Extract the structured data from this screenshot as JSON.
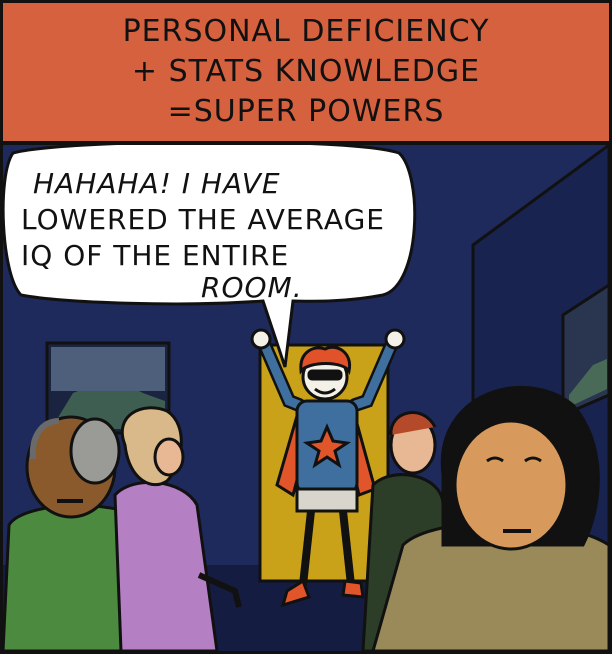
{
  "caption": {
    "line1": "PERSONAL DEFICIENCY",
    "line2": "+ STATS KNOWLEDGE",
    "line3": "=SUPER POWERS"
  },
  "speech": {
    "line1": "HAHAHA!  I HAVE",
    "line2": "LOWERED THE AVERAGE",
    "line3": "IQ OF THE ENTIRE",
    "line4": "ROOM."
  },
  "colors": {
    "caption_bg": "#d6613e",
    "wall": "#1f2a5c",
    "doorway": "#c9a21a",
    "hero_shirt": "#3f6f9e",
    "hero_cape": "#e0562a",
    "hero_hair": "#e2522a"
  }
}
